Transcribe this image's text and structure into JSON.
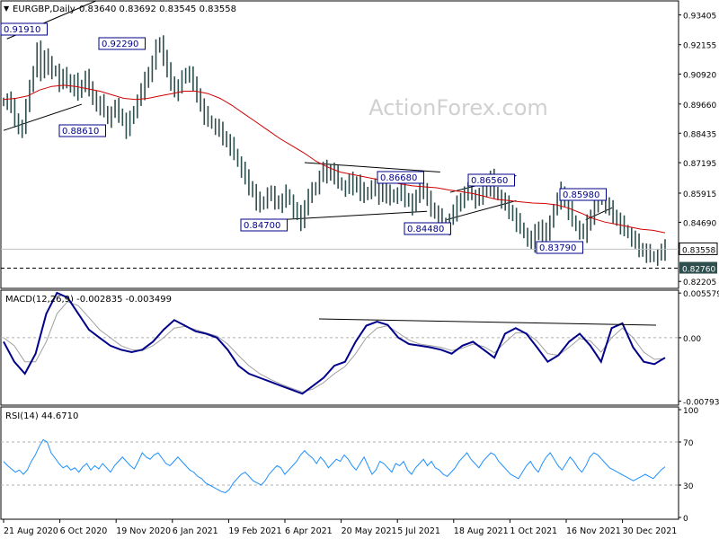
{
  "chart_data": {
    "type": "line",
    "header": {
      "main_symbol": "EURGBP,Daily",
      "ohlc": "0.83640 0.83692 0.83545 0.83558",
      "macd_label": "MACD(12,26,9) -0.002835 -0.003499",
      "rsi_label": "RSI(14) 44.6710"
    },
    "watermark": "ActionForex.com",
    "price_axis_ticks": [
      "0.93405",
      "0.92155",
      "0.90920",
      "0.89660",
      "0.88435",
      "0.87195",
      "0.85915",
      "0.84690",
      "0.83558",
      "0.82760",
      "0.82205"
    ],
    "current_price": "0.83558",
    "support_price": "0.82760",
    "macd_axis_ticks": [
      "0.005579",
      "0.00",
      "-0.007931"
    ],
    "rsi_axis_ticks": [
      "100",
      "70",
      "30",
      "0"
    ],
    "x_ticks": [
      "21 Aug 2020",
      "6 Oct 2020",
      "19 Nov 2020",
      "6 Jan 2021",
      "19 Feb 2021",
      "6 Apr 2021",
      "20 May 2021",
      "5 Jul 2021",
      "18 Aug 2021",
      "1 Oct 2021",
      "16 Nov 2021",
      "30 Dec 2021"
    ],
    "price_labels": [
      "0.91910",
      "0.92290",
      "0.88610",
      "0.86680",
      "0.86560",
      "0.85980",
      "0.84700",
      "0.84480",
      "0.83790"
    ],
    "ylim_price": [
      0.8195,
      0.9392
    ],
    "ylim_macd": [
      -0.0082,
      0.0056
    ],
    "ylim_rsi": [
      0,
      100
    ],
    "price_close": [
      0.8975,
      0.8985,
      0.895,
      0.8905,
      0.8865,
      0.887,
      0.895,
      0.905,
      0.91,
      0.9191,
      0.91,
      0.917,
      0.913,
      0.91,
      0.911,
      0.905,
      0.908,
      0.907,
      0.904,
      0.906,
      0.901,
      0.905,
      0.908,
      0.902,
      0.9,
      0.896,
      0.897,
      0.894,
      0.89,
      0.893,
      0.895,
      0.8925,
      0.89,
      0.8861,
      0.89,
      0.894,
      0.898,
      0.902,
      0.906,
      0.91,
      0.914,
      0.92,
      0.9229,
      0.916,
      0.91,
      0.906,
      0.902,
      0.904,
      0.907,
      0.91,
      0.909,
      0.904,
      0.901,
      0.896,
      0.892,
      0.89,
      0.888,
      0.887,
      0.885,
      0.883,
      0.881,
      0.879,
      0.876,
      0.872,
      0.869,
      0.865,
      0.862,
      0.86,
      0.856,
      0.854,
      0.856,
      0.859,
      0.858,
      0.856,
      0.855,
      0.856,
      0.859,
      0.856,
      0.852,
      0.85,
      0.847,
      0.854,
      0.858,
      0.86,
      0.862,
      0.866,
      0.869,
      0.867,
      0.869,
      0.867,
      0.864,
      0.862,
      0.861,
      0.864,
      0.862,
      0.864,
      0.86,
      0.858,
      0.86,
      0.862,
      0.86,
      0.858,
      0.861,
      0.859,
      0.857,
      0.859,
      0.858,
      0.86,
      0.857,
      0.856,
      0.854,
      0.8568,
      0.862,
      0.86,
      0.856,
      0.853,
      0.851,
      0.849,
      0.847,
      0.8448,
      0.848,
      0.851,
      0.854,
      0.857,
      0.859,
      0.86,
      0.858,
      0.856,
      0.858,
      0.86,
      0.862,
      0.8656,
      0.86,
      0.858,
      0.856,
      0.854,
      0.852,
      0.85,
      0.847,
      0.845,
      0.842,
      0.84,
      0.8379,
      0.842,
      0.845,
      0.843,
      0.841,
      0.848,
      0.852,
      0.856,
      0.8598,
      0.856,
      0.852,
      0.848,
      0.845,
      0.843,
      0.842,
      0.846,
      0.85,
      0.854,
      0.856,
      0.857,
      0.854,
      0.852,
      0.85,
      0.848,
      0.846,
      0.844,
      0.842,
      0.84,
      0.838,
      0.836,
      0.835,
      0.834,
      0.833,
      0.832,
      0.833,
      0.8345,
      0.8356
    ],
    "moving_average": [
      0.8985,
      0.899,
      0.9,
      0.9025,
      0.904,
      0.9045,
      0.904,
      0.903,
      0.902,
      0.9005,
      0.899,
      0.8985,
      0.899,
      0.9,
      0.901,
      0.902,
      0.902,
      0.901,
      0.899,
      0.896,
      0.8925,
      0.889,
      0.8855,
      0.882,
      0.879,
      0.876,
      0.8725,
      0.87,
      0.868,
      0.867,
      0.866,
      0.865,
      0.864,
      0.863,
      0.8622,
      0.8618,
      0.8614,
      0.8605,
      0.8598,
      0.859,
      0.8578,
      0.8565,
      0.856,
      0.8555,
      0.855,
      0.8548,
      0.8542,
      0.8528,
      0.8508,
      0.8485,
      0.847,
      0.846,
      0.845,
      0.844,
      0.8435,
      0.8425
    ],
    "macd": [
      -0.0005,
      -0.003,
      -0.0045,
      -0.002,
      0.003,
      0.0056,
      0.005,
      0.003,
      0.001,
      0.0,
      -0.001,
      -0.0015,
      -0.0018,
      -0.0015,
      -0.0005,
      0.001,
      0.0022,
      0.0015,
      0.0008,
      0.0005,
      0.0,
      -0.0015,
      -0.0035,
      -0.0045,
      -0.005,
      -0.0055,
      -0.006,
      -0.0065,
      -0.007,
      -0.006,
      -0.005,
      -0.0035,
      -0.003,
      -0.0005,
      0.0015,
      0.002,
      0.0016,
      0.0,
      -0.0008,
      -0.001,
      -0.0012,
      -0.0015,
      -0.002,
      -0.001,
      -0.0005,
      -0.0015,
      -0.0025,
      0.0005,
      0.0012,
      0.0005,
      -0.0012,
      -0.003,
      -0.0022,
      -0.0005,
      0.0005,
      -0.001,
      -0.003,
      0.0012,
      0.0018,
      -0.0012,
      -0.003,
      -0.0033,
      -0.0025
    ],
    "macd_signal": [
      0.0,
      -0.001,
      -0.003,
      -0.003,
      -0.0005,
      0.003,
      0.0045,
      0.004,
      0.0025,
      0.001,
      0.0,
      -0.001,
      -0.0015,
      -0.0016,
      -0.001,
      0.0,
      0.0012,
      0.0014,
      0.001,
      0.0006,
      0.0002,
      -0.0008,
      -0.0022,
      -0.0035,
      -0.0045,
      -0.0052,
      -0.0058,
      -0.0063,
      -0.0068,
      -0.0064,
      -0.0056,
      -0.0045,
      -0.0036,
      -0.002,
      0.0,
      0.0012,
      0.0015,
      0.0006,
      -0.0003,
      -0.0008,
      -0.001,
      -0.0012,
      -0.0016,
      -0.0013,
      -0.0008,
      -0.0011,
      -0.0019,
      -0.0006,
      0.0006,
      0.0006,
      -0.0004,
      -0.002,
      -0.0022,
      -0.0012,
      -0.0001,
      -0.0004,
      -0.0018,
      0.0,
      0.0012,
      0.0,
      -0.0018,
      -0.0027,
      -0.0026
    ],
    "rsi": [
      52,
      48,
      45,
      42,
      44,
      40,
      44,
      52,
      58,
      66,
      72,
      70,
      60,
      55,
      50,
      46,
      48,
      44,
      46,
      42,
      47,
      50,
      44,
      48,
      45,
      50,
      46,
      42,
      48,
      52,
      56,
      52,
      48,
      45,
      52,
      60,
      56,
      54,
      58,
      60,
      55,
      50,
      48,
      52,
      56,
      52,
      48,
      44,
      42,
      38,
      36,
      32,
      30,
      28,
      26,
      24,
      23,
      26,
      32,
      36,
      40,
      42,
      38,
      34,
      32,
      30,
      34,
      40,
      44,
      48,
      46,
      40,
      44,
      48,
      52,
      58,
      62,
      58,
      55,
      50,
      56,
      52,
      46,
      50,
      54,
      52,
      58,
      54,
      48,
      44,
      50,
      56,
      48,
      40,
      44,
      52,
      50,
      46,
      42,
      50,
      48,
      52,
      44,
      40,
      46,
      50,
      54,
      48,
      52,
      46,
      44,
      40,
      38,
      42,
      46,
      52,
      56,
      60,
      54,
      50,
      46,
      52,
      56,
      60,
      58,
      52,
      48,
      44,
      40,
      38,
      36,
      42,
      48,
      52,
      46,
      42,
      50,
      56,
      60,
      54,
      48,
      44,
      50,
      56,
      52,
      46,
      42,
      48,
      56,
      60,
      58,
      54,
      50,
      46,
      44,
      42,
      40,
      38,
      36,
      34,
      36,
      38,
      40,
      38,
      36,
      40,
      44,
      47
    ]
  }
}
